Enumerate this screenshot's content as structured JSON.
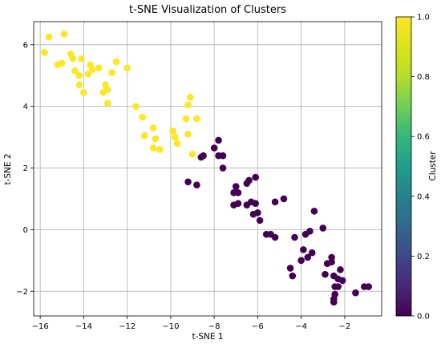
{
  "chart_data": {
    "type": "scatter",
    "title": "t-SNE Visualization of Clusters",
    "xlabel": "t-SNE 1",
    "ylabel": "t-SNE 2",
    "xlim": [
      -16.3,
      -0.3
    ],
    "ylim": [
      -2.8,
      6.75
    ],
    "x_ticks": [
      -16,
      -14,
      -12,
      -10,
      -8,
      -6,
      -4,
      -2
    ],
    "x_tick_labels": [
      "−16",
      "−14",
      "−12",
      "−10",
      "−8",
      "−6",
      "−4",
      "−2"
    ],
    "y_ticks": [
      -2,
      0,
      2,
      4,
      6
    ],
    "y_tick_labels": [
      "−2",
      "0",
      "2",
      "4",
      "6"
    ],
    "grid": true,
    "colorbar": {
      "label": "Cluster",
      "colormap": "viridis",
      "range": [
        0.0,
        1.0
      ],
      "ticks": [
        0.0,
        0.2,
        0.4,
        0.6,
        0.8,
        1.0
      ],
      "tick_labels": [
        "0.0",
        "0.2",
        "0.4",
        "0.6",
        "0.8",
        "1.0"
      ]
    },
    "series": [
      {
        "cluster": 1,
        "color": "#fde725",
        "points": [
          [
            -15.8,
            5.75
          ],
          [
            -15.6,
            6.25
          ],
          [
            -15.2,
            5.35
          ],
          [
            -15.0,
            5.4
          ],
          [
            -14.9,
            6.35
          ],
          [
            -14.6,
            5.7
          ],
          [
            -14.5,
            5.55
          ],
          [
            -14.4,
            5.15
          ],
          [
            -14.2,
            4.7
          ],
          [
            -14.2,
            5.0
          ],
          [
            -14.1,
            5.55
          ],
          [
            -14.0,
            4.45
          ],
          [
            -13.8,
            5.05
          ],
          [
            -13.7,
            5.35
          ],
          [
            -13.6,
            5.2
          ],
          [
            -13.3,
            5.25
          ],
          [
            -13.1,
            4.45
          ],
          [
            -13.0,
            4.7
          ],
          [
            -12.9,
            4.1
          ],
          [
            -12.9,
            4.55
          ],
          [
            -12.7,
            5.1
          ],
          [
            -12.5,
            5.45
          ],
          [
            -12.0,
            5.25
          ],
          [
            -11.6,
            4.0
          ],
          [
            -11.3,
            3.65
          ],
          [
            -11.2,
            3.05
          ],
          [
            -10.8,
            3.3
          ],
          [
            -10.7,
            2.95
          ],
          [
            -10.5,
            2.6
          ],
          [
            -10.8,
            2.65
          ],
          [
            -9.9,
            3.2
          ],
          [
            -9.8,
            3.0
          ],
          [
            -9.7,
            2.8
          ],
          [
            -9.3,
            3.6
          ],
          [
            -9.2,
            4.05
          ],
          [
            -9.1,
            4.3
          ],
          [
            -9.2,
            3.1
          ],
          [
            -9.0,
            2.45
          ],
          [
            -8.8,
            3.6
          ]
        ]
      },
      {
        "cluster": 0,
        "color": "#440154",
        "points": [
          [
            -9.2,
            1.55
          ],
          [
            -8.8,
            1.45
          ],
          [
            -8.6,
            2.35
          ],
          [
            -8.5,
            2.4
          ],
          [
            -8.0,
            2.65
          ],
          [
            -7.8,
            2.9
          ],
          [
            -7.8,
            2.4
          ],
          [
            -7.6,
            2.4
          ],
          [
            -7.6,
            2.0
          ],
          [
            -7.1,
            1.2
          ],
          [
            -7.0,
            1.4
          ],
          [
            -6.9,
            1.2
          ],
          [
            -7.1,
            0.8
          ],
          [
            -6.9,
            0.85
          ],
          [
            -6.5,
            1.5
          ],
          [
            -6.4,
            1.6
          ],
          [
            -6.3,
            0.9
          ],
          [
            -6.5,
            0.8
          ],
          [
            -6.1,
            1.7
          ],
          [
            -6.2,
            0.5
          ],
          [
            -6.1,
            0.85
          ],
          [
            -5.9,
            0.3
          ],
          [
            -6.0,
            0.55
          ],
          [
            -5.6,
            -0.15
          ],
          [
            -5.4,
            -0.15
          ],
          [
            -5.2,
            -0.25
          ],
          [
            -5.2,
            0.9
          ],
          [
            -4.8,
            1.0
          ],
          [
            -4.3,
            -0.25
          ],
          [
            -4.0,
            -1.0
          ],
          [
            -3.9,
            -0.65
          ],
          [
            -3.8,
            -0.15
          ],
          [
            -3.6,
            -0.05
          ],
          [
            -3.7,
            -0.9
          ],
          [
            -3.5,
            -0.75
          ],
          [
            -3.4,
            0.6
          ],
          [
            -3.0,
            0.05
          ],
          [
            -2.8,
            -1.1
          ],
          [
            -2.9,
            -1.45
          ],
          [
            -2.6,
            -0.9
          ],
          [
            -2.6,
            -1.05
          ],
          [
            -2.5,
            -1.5
          ],
          [
            -2.45,
            -1.85
          ],
          [
            -2.3,
            -1.6
          ],
          [
            -2.2,
            -1.3
          ],
          [
            -2.3,
            -1.85
          ],
          [
            -2.5,
            -2.25
          ],
          [
            -2.5,
            -2.35
          ],
          [
            -2.45,
            -2.1
          ],
          [
            -2.1,
            -1.65
          ],
          [
            -1.5,
            -2.05
          ],
          [
            -1.1,
            -1.85
          ],
          [
            -0.9,
            -1.85
          ],
          [
            -4.4,
            -1.5
          ],
          [
            -4.5,
            -1.25
          ]
        ]
      }
    ]
  }
}
